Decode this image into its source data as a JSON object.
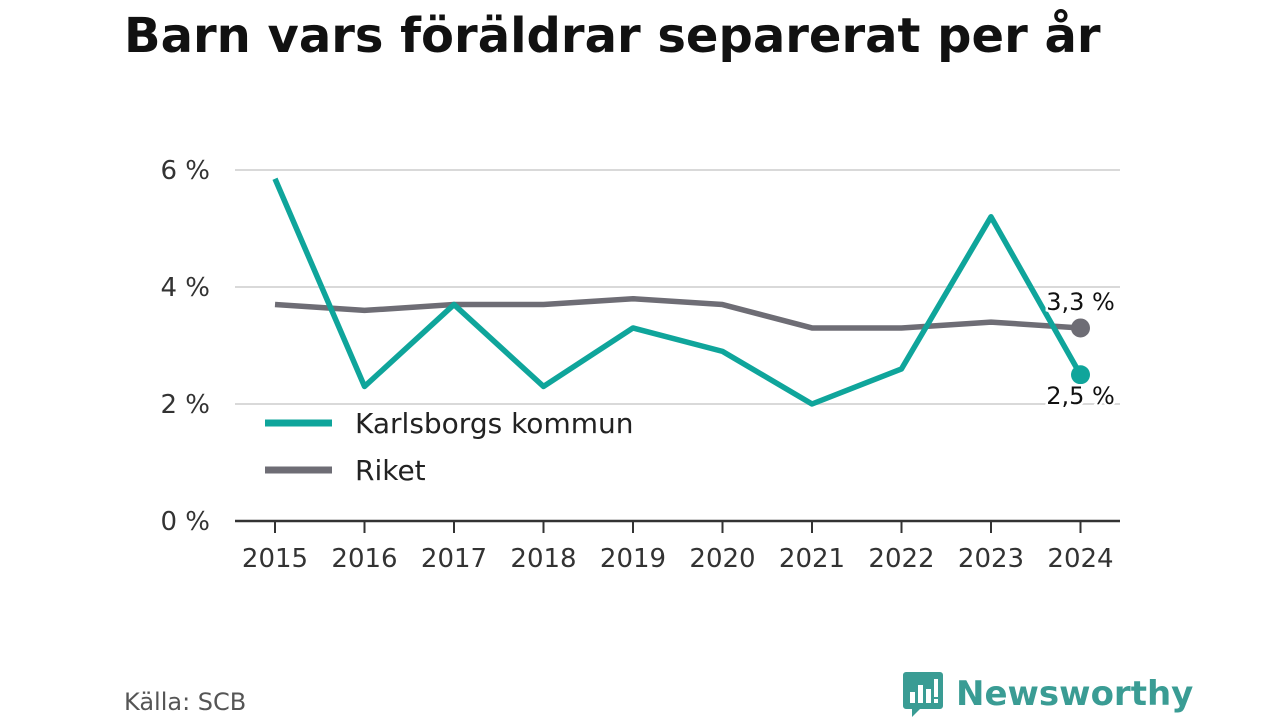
{
  "title": "Barn vars föräldrar separerat per år",
  "source": "Källa: SCB",
  "brand": {
    "name": "Newsworthy",
    "icon": "bar-chart-logo-icon",
    "color": "#3a9c94"
  },
  "chart_data": {
    "type": "line",
    "title": "Barn vars föräldrar separerat per år",
    "x": [
      "2015",
      "2016",
      "2017",
      "2018",
      "2019",
      "2020",
      "2021",
      "2022",
      "2023",
      "2024"
    ],
    "ylim": [
      0,
      6
    ],
    "yticks": [
      0,
      2,
      4,
      6
    ],
    "ytick_labels": [
      "0 %",
      "2 %",
      "4 %",
      "6 %"
    ],
    "grid": true,
    "legend": "bottom-left",
    "series": [
      {
        "name": "Karlsborgs kommun",
        "color": "#0fa59b",
        "values": [
          5.85,
          2.3,
          3.7,
          2.3,
          3.3,
          2.9,
          2.0,
          2.6,
          5.2,
          2.5
        ],
        "end_label": "2,5 %"
      },
      {
        "name": "Riket",
        "color": "#6e6d75",
        "values": [
          3.7,
          3.6,
          3.7,
          3.7,
          3.8,
          3.7,
          3.3,
          3.3,
          3.4,
          3.3
        ],
        "end_label": "3,3 %"
      }
    ]
  }
}
